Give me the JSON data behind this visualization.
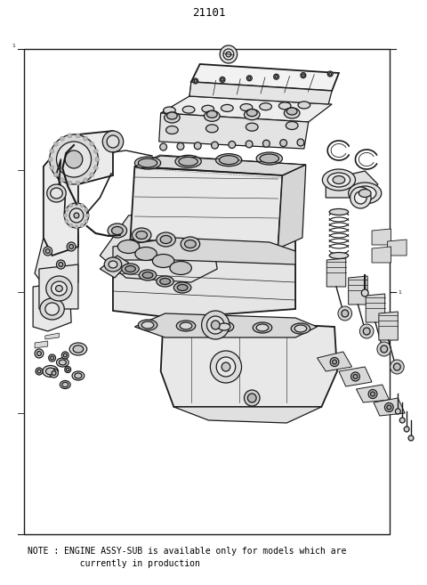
{
  "title_number": "21101",
  "note_line1": "NOTE : ENGINE ASSY-SUB is available only for models which are",
  "note_line2": "          currently in production",
  "bg_color": "#ffffff",
  "border_color": "#000000",
  "text_color": "#000000",
  "page_width": 4.8,
  "page_height": 6.57,
  "dpi": 100,
  "title_fontsize": 9,
  "note_fontsize": 7.0,
  "lc": "#1a1a1a",
  "lw_main": 0.9,
  "lw_thin": 0.5,
  "lw_thick": 1.3,
  "fc_light": "#f0f0f0",
  "fc_mid": "#e0e0e0",
  "fc_dark": "#c8c8c8"
}
